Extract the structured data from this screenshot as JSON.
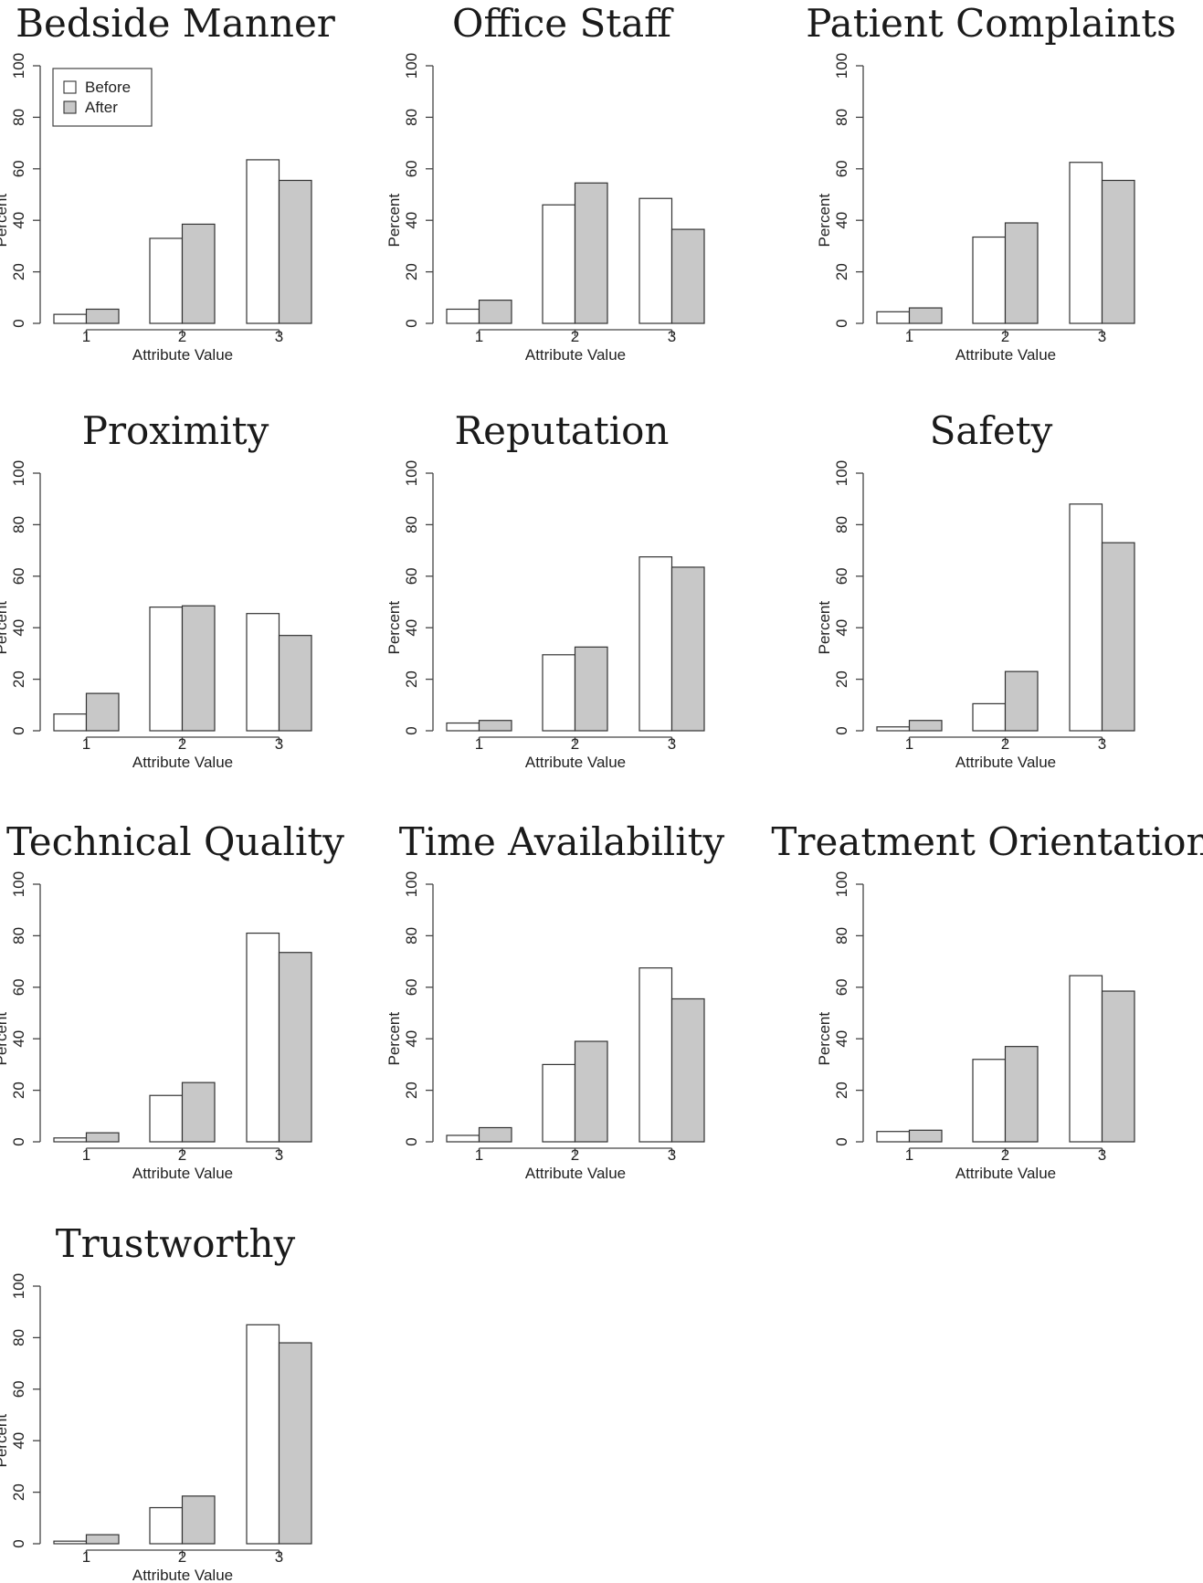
{
  "legend": {
    "labels": [
      "Before",
      "After"
    ]
  },
  "colors": {
    "before": "#ffffff",
    "after": "#c8c8c8",
    "outline": "#333333"
  },
  "chart_data": [
    {
      "type": "bar",
      "title": "Bedside Manner",
      "xlabel": "Attribute Value",
      "ylabel": "Percent",
      "ylim": [
        0,
        100
      ],
      "yticks": [
        0,
        20,
        40,
        60,
        80,
        100
      ],
      "categories": [
        "1",
        "2",
        "3"
      ],
      "legend": "top-left",
      "series": [
        {
          "name": "Before",
          "values": [
            3.5,
            33,
            63.5
          ]
        },
        {
          "name": "After",
          "values": [
            5.5,
            38.5,
            55.5
          ]
        }
      ]
    },
    {
      "type": "bar",
      "title": "Office Staff",
      "xlabel": "Attribute Value",
      "ylabel": "Percent",
      "ylim": [
        0,
        100
      ],
      "yticks": [
        0,
        20,
        40,
        60,
        80,
        100
      ],
      "categories": [
        "1",
        "2",
        "3"
      ],
      "series": [
        {
          "name": "Before",
          "values": [
            5.5,
            46,
            48.5
          ]
        },
        {
          "name": "After",
          "values": [
            9,
            54.5,
            36.5
          ]
        }
      ]
    },
    {
      "type": "bar",
      "title": "Patient Complaints",
      "xlabel": "Attribute Value",
      "ylabel": "Percent",
      "ylim": [
        0,
        100
      ],
      "yticks": [
        0,
        20,
        40,
        60,
        80,
        100
      ],
      "categories": [
        "1",
        "2",
        "3"
      ],
      "series": [
        {
          "name": "Before",
          "values": [
            4.5,
            33.5,
            62.5
          ]
        },
        {
          "name": "After",
          "values": [
            6,
            39,
            55.5
          ]
        }
      ]
    },
    {
      "type": "bar",
      "title": "Proximity",
      "xlabel": "Attribute Value",
      "ylabel": "Percent",
      "ylim": [
        0,
        100
      ],
      "yticks": [
        0,
        20,
        40,
        60,
        80,
        100
      ],
      "categories": [
        "1",
        "2",
        "3"
      ],
      "series": [
        {
          "name": "Before",
          "values": [
            6.5,
            48,
            45.5
          ]
        },
        {
          "name": "After",
          "values": [
            14.5,
            48.5,
            37
          ]
        }
      ]
    },
    {
      "type": "bar",
      "title": "Reputation",
      "xlabel": "Attribute Value",
      "ylabel": "Percent",
      "ylim": [
        0,
        100
      ],
      "yticks": [
        0,
        20,
        40,
        60,
        80,
        100
      ],
      "categories": [
        "1",
        "2",
        "3"
      ],
      "series": [
        {
          "name": "Before",
          "values": [
            3,
            29.5,
            67.5
          ]
        },
        {
          "name": "After",
          "values": [
            4,
            32.5,
            63.5
          ]
        }
      ]
    },
    {
      "type": "bar",
      "title": "Safety",
      "xlabel": "Attribute Value",
      "ylabel": "Percent",
      "ylim": [
        0,
        100
      ],
      "yticks": [
        0,
        20,
        40,
        60,
        80,
        100
      ],
      "categories": [
        "1",
        "2",
        "3"
      ],
      "series": [
        {
          "name": "Before",
          "values": [
            1.5,
            10.5,
            88
          ]
        },
        {
          "name": "After",
          "values": [
            4,
            23,
            73
          ]
        }
      ]
    },
    {
      "type": "bar",
      "title": "Technical Quality",
      "xlabel": "Attribute Value",
      "ylabel": "Percent",
      "ylim": [
        0,
        100
      ],
      "yticks": [
        0,
        20,
        40,
        60,
        80,
        100
      ],
      "categories": [
        "1",
        "2",
        "3"
      ],
      "series": [
        {
          "name": "Before",
          "values": [
            1.5,
            18,
            81
          ]
        },
        {
          "name": "After",
          "values": [
            3.5,
            23,
            73.5
          ]
        }
      ]
    },
    {
      "type": "bar",
      "title": "Time Availability",
      "xlabel": "Attribute Value",
      "ylabel": "Percent",
      "ylim": [
        0,
        100
      ],
      "yticks": [
        0,
        20,
        40,
        60,
        80,
        100
      ],
      "categories": [
        "1",
        "2",
        "3"
      ],
      "series": [
        {
          "name": "Before",
          "values": [
            2.5,
            30,
            67.5
          ]
        },
        {
          "name": "After",
          "values": [
            5.5,
            39,
            55.5
          ]
        }
      ]
    },
    {
      "type": "bar",
      "title": "Treatment Orientation",
      "xlabel": "Attribute Value",
      "ylabel": "Percent",
      "ylim": [
        0,
        100
      ],
      "yticks": [
        0,
        20,
        40,
        60,
        80,
        100
      ],
      "categories": [
        "1",
        "2",
        "3"
      ],
      "series": [
        {
          "name": "Before",
          "values": [
            4,
            32,
            64.5
          ]
        },
        {
          "name": "After",
          "values": [
            4.5,
            37,
            58.5
          ]
        }
      ]
    },
    {
      "type": "bar",
      "title": "Trustworthy",
      "xlabel": "Attribute Value",
      "ylabel": "Percent",
      "ylim": [
        0,
        100
      ],
      "yticks": [
        0,
        20,
        40,
        60,
        80,
        100
      ],
      "categories": [
        "1",
        "2",
        "3"
      ],
      "series": [
        {
          "name": "Before",
          "values": [
            1,
            14,
            85
          ]
        },
        {
          "name": "After",
          "values": [
            3.5,
            18.5,
            78
          ]
        }
      ]
    }
  ]
}
